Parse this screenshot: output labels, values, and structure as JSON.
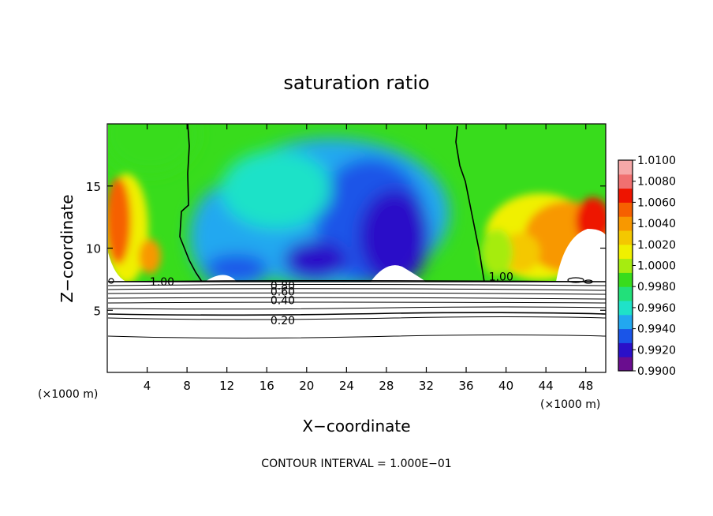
{
  "chart_data": {
    "type": "heatmap",
    "title": "saturation ratio",
    "xlabel": "X−coordinate",
    "ylabel": "Z−coordinate",
    "x_unit_left": "(×1000 m)",
    "x_unit_right": "(×1000 m)",
    "xlim": [
      0,
      50
    ],
    "ylim": [
      0,
      20
    ],
    "x_ticks": [
      4,
      8,
      12,
      16,
      20,
      24,
      28,
      32,
      36,
      40,
      44,
      48
    ],
    "y_ticks": [
      5,
      10,
      15
    ],
    "grid": false,
    "footer": "CONTOUR INTERVAL = 1.000E−01",
    "colorbar": {
      "placement": "right",
      "min": 0.99,
      "max": 1.01,
      "labels": [
        "1.0100",
        "1.0080",
        "1.0060",
        "1.0040",
        "1.0020",
        "1.0000",
        "0.9980",
        "0.9960",
        "0.9940",
        "0.9920",
        "0.9900"
      ],
      "colors": [
        "#6a0d8f",
        "#2a10c8",
        "#1a55e8",
        "#22a8f0",
        "#1fe2c8",
        "#22e07a",
        "#38dc1c",
        "#a6ec10",
        "#f0f000",
        "#f4c800",
        "#f89800",
        "#f66000",
        "#ee1400",
        "#f07070",
        "#f6a8a8"
      ]
    },
    "contour_labels": [
      {
        "text": "1.00",
        "x": 5.5,
        "z": 7.3
      },
      {
        "text": "1.00",
        "x": 39.5,
        "z": 7.7
      },
      {
        "text": "0.80",
        "x": 17.6,
        "z": 7.0
      },
      {
        "text": "0.60",
        "x": 17.6,
        "z": 6.5
      },
      {
        "text": "0.40",
        "x": 17.6,
        "z": 5.8
      },
      {
        "text": "0.20",
        "x": 17.6,
        "z": 4.2
      }
    ]
  }
}
